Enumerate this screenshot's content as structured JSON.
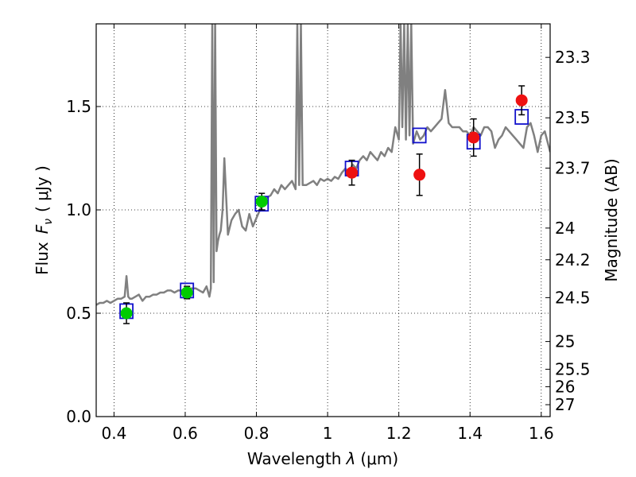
{
  "chart_data": {
    "type": "scatter",
    "xlabel_prefix": "Wavelength",
    "xlabel_symbol": "λ",
    "xlabel_unit": "(μm)",
    "ylabel_prefix": "Flux",
    "ylabel_symbol": "F",
    "ylabel_subscript": "ν",
    "ylabel_unit": "( μJy )",
    "ylabel_right": "Magnitude (AB)",
    "xlim": [
      0.35,
      1.625
    ],
    "ylim": [
      0.0,
      1.9
    ],
    "grid": true,
    "x_ticks": [
      0.4,
      0.6,
      0.8,
      1.0,
      1.2,
      1.4,
      1.6
    ],
    "x_tick_labels": [
      "0.4",
      "0.6",
      "0.8",
      "1",
      "1.2",
      "1.4",
      "1.6"
    ],
    "y_ticks": [
      0.0,
      0.5,
      1.0,
      1.5
    ],
    "y_tick_labels": [
      "0.0",
      "0.5",
      "1.0",
      "1.5"
    ],
    "right_ticks": [
      {
        "label": "23.3",
        "mag": 23.3
      },
      {
        "label": "23.5",
        "mag": 23.5
      },
      {
        "label": "23.7",
        "mag": 23.7
      },
      {
        "label": "24",
        "mag": 24.0
      },
      {
        "label": "24.2",
        "mag": 24.2
      },
      {
        "label": "24.5",
        "mag": 24.5
      },
      {
        "label": "25",
        "mag": 25.0
      },
      {
        "label": "25.5",
        "mag": 25.5
      },
      {
        "label": "26",
        "mag": 26.0
      },
      {
        "label": "27",
        "mag": 27.0
      }
    ],
    "colors": {
      "spectrum": "#808080",
      "observed_optical": "#00cc00",
      "observed_ir": "#ee1111",
      "model": "#1111cc",
      "errorbar": "#000000",
      "grid": "#000000"
    },
    "spectrum_x": [
      0.35,
      0.36,
      0.37,
      0.38,
      0.39,
      0.4,
      0.41,
      0.42,
      0.43,
      0.435,
      0.44,
      0.445,
      0.45,
      0.46,
      0.47,
      0.48,
      0.49,
      0.5,
      0.51,
      0.52,
      0.53,
      0.54,
      0.55,
      0.56,
      0.57,
      0.58,
      0.59,
      0.6,
      0.61,
      0.62,
      0.63,
      0.64,
      0.65,
      0.66,
      0.668,
      0.672,
      0.676,
      0.68,
      0.684,
      0.688,
      0.692,
      0.696,
      0.7,
      0.705,
      0.71,
      0.72,
      0.73,
      0.74,
      0.75,
      0.76,
      0.77,
      0.78,
      0.79,
      0.8,
      0.81,
      0.82,
      0.83,
      0.84,
      0.85,
      0.86,
      0.87,
      0.88,
      0.89,
      0.9,
      0.91,
      0.915,
      0.92,
      0.925,
      0.93,
      0.94,
      0.95,
      0.96,
      0.97,
      0.98,
      0.99,
      1.0,
      1.01,
      1.02,
      1.03,
      1.04,
      1.05,
      1.06,
      1.07,
      1.08,
      1.09,
      1.1,
      1.11,
      1.12,
      1.13,
      1.14,
      1.15,
      1.16,
      1.17,
      1.18,
      1.19,
      1.2,
      1.205,
      1.21,
      1.215,
      1.22,
      1.225,
      1.23,
      1.235,
      1.24,
      1.25,
      1.26,
      1.27,
      1.28,
      1.29,
      1.3,
      1.31,
      1.32,
      1.33,
      1.34,
      1.35,
      1.36,
      1.37,
      1.38,
      1.39,
      1.4,
      1.41,
      1.42,
      1.43,
      1.44,
      1.45,
      1.46,
      1.47,
      1.48,
      1.49,
      1.5,
      1.51,
      1.52,
      1.53,
      1.54,
      1.55,
      1.56,
      1.57,
      1.58,
      1.59,
      1.6,
      1.61,
      1.625
    ],
    "spectrum_y": [
      0.54,
      0.55,
      0.55,
      0.56,
      0.55,
      0.56,
      0.57,
      0.57,
      0.58,
      0.68,
      0.58,
      0.57,
      0.57,
      0.58,
      0.59,
      0.56,
      0.58,
      0.58,
      0.59,
      0.59,
      0.6,
      0.6,
      0.61,
      0.61,
      0.6,
      0.61,
      0.61,
      0.61,
      0.62,
      0.62,
      0.62,
      0.61,
      0.6,
      0.63,
      0.58,
      0.62,
      1.9,
      0.65,
      1.9,
      0.8,
      0.85,
      0.88,
      0.9,
      1.0,
      1.25,
      0.88,
      0.95,
      0.98,
      1.0,
      0.92,
      0.9,
      0.98,
      0.92,
      0.96,
      1.0,
      1.04,
      1.06,
      1.07,
      1.1,
      1.08,
      1.12,
      1.1,
      1.12,
      1.14,
      1.1,
      1.9,
      1.12,
      1.9,
      1.12,
      1.12,
      1.13,
      1.14,
      1.12,
      1.15,
      1.14,
      1.15,
      1.14,
      1.16,
      1.15,
      1.18,
      1.2,
      1.18,
      1.22,
      1.2,
      1.24,
      1.26,
      1.24,
      1.28,
      1.26,
      1.24,
      1.28,
      1.26,
      1.3,
      1.28,
      1.4,
      1.34,
      1.9,
      1.4,
      1.9,
      1.34,
      1.9,
      1.36,
      1.9,
      1.32,
      1.38,
      1.34,
      1.36,
      1.4,
      1.38,
      1.4,
      1.42,
      1.44,
      1.58,
      1.42,
      1.4,
      1.4,
      1.4,
      1.38,
      1.38,
      1.36,
      1.4,
      1.38,
      1.36,
      1.4,
      1.4,
      1.38,
      1.3,
      1.34,
      1.36,
      1.4,
      1.38,
      1.36,
      1.34,
      1.32,
      1.3,
      1.4,
      1.42,
      1.36,
      1.28,
      1.36,
      1.38,
      1.28
    ],
    "observed": [
      {
        "x": 0.435,
        "y": 0.5,
        "err": 0.05,
        "band": "optical"
      },
      {
        "x": 0.605,
        "y": 0.6,
        "err": 0.03,
        "band": "optical"
      },
      {
        "x": 0.815,
        "y": 1.04,
        "err": 0.04,
        "band": "optical"
      },
      {
        "x": 1.068,
        "y": 1.18,
        "err": 0.06,
        "band": "ir"
      },
      {
        "x": 1.258,
        "y": 1.17,
        "err": 0.1,
        "band": "ir"
      },
      {
        "x": 1.41,
        "y": 1.35,
        "err": 0.09,
        "band": "ir"
      },
      {
        "x": 1.545,
        "y": 1.53,
        "err": 0.07,
        "band": "ir"
      }
    ],
    "model": [
      {
        "x": 0.435,
        "y": 0.51
      },
      {
        "x": 0.605,
        "y": 0.61
      },
      {
        "x": 0.815,
        "y": 1.03
      },
      {
        "x": 1.068,
        "y": 1.2
      },
      {
        "x": 1.258,
        "y": 1.36
      },
      {
        "x": 1.41,
        "y": 1.33
      },
      {
        "x": 1.545,
        "y": 1.45
      }
    ]
  }
}
